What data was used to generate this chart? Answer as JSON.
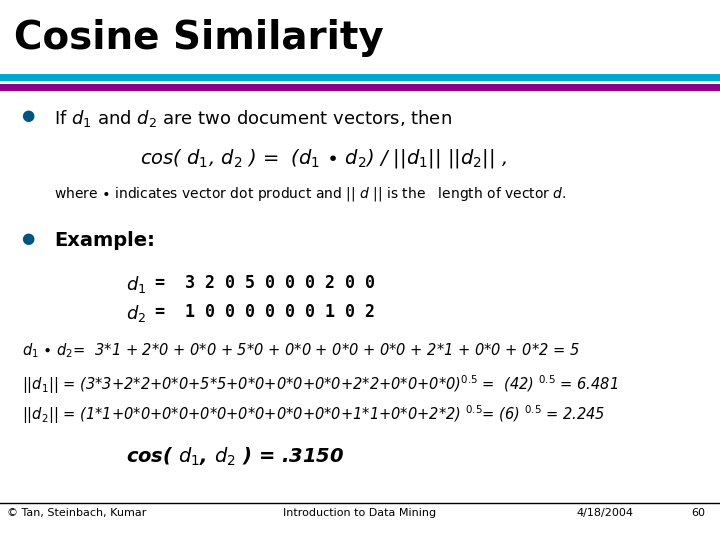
{
  "title": "Cosine Similarity",
  "title_fontsize": 28,
  "title_fontweight": "bold",
  "bg_color": "#ffffff",
  "bar1_color": "#00AACC",
  "bar2_color": "#8B008B",
  "bullet_color": "#005580",
  "footer_left": "© Tan, Steinbach, Kumar",
  "footer_center": "Introduction to Data Mining",
  "footer_right": "4/18/2004",
  "footer_page": "60"
}
